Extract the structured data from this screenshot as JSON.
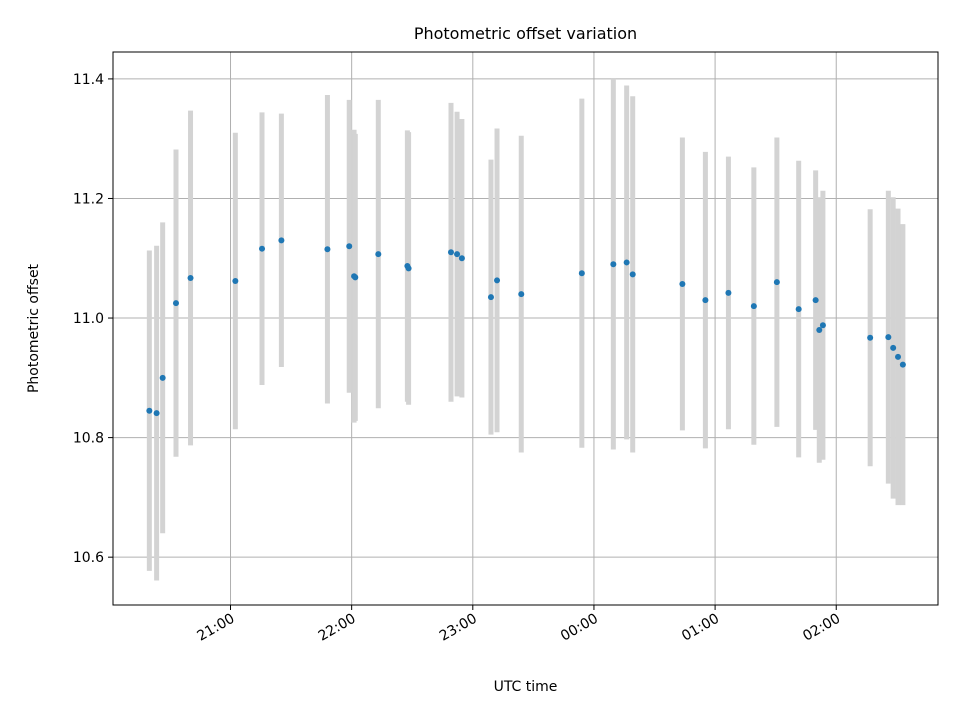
{
  "chart_data": {
    "type": "scatter",
    "title": "Photometric offset variation",
    "xlabel": "UTC time",
    "ylabel": "Photometric offset",
    "x_unit": "hours",
    "xlim": [
      20.03,
      26.84
    ],
    "ylim": [
      10.52,
      11.445
    ],
    "xticks": [
      {
        "value": 21,
        "label": "21:00"
      },
      {
        "value": 22,
        "label": "22:00"
      },
      {
        "value": 23,
        "label": "23:00"
      },
      {
        "value": 24,
        "label": "00:00"
      },
      {
        "value": 25,
        "label": "01:00"
      },
      {
        "value": 26,
        "label": "02:00"
      }
    ],
    "yticks": [
      {
        "value": 10.6,
        "label": "10.6"
      },
      {
        "value": 10.8,
        "label": "10.8"
      },
      {
        "value": 11.0,
        "label": "11.0"
      },
      {
        "value": 11.2,
        "label": "11.2"
      },
      {
        "value": 11.4,
        "label": "11.4"
      }
    ],
    "grid": true,
    "colors": {
      "marker": "#1f77b4",
      "errorbar": "#d3d3d3",
      "grid": "#b0b0b0"
    },
    "series": [
      {
        "points": [
          {
            "x": 20.33,
            "y": 10.845,
            "err": 0.268
          },
          {
            "x": 20.39,
            "y": 10.841,
            "err": 0.28
          },
          {
            "x": 20.44,
            "y": 10.9,
            "err": 0.26
          },
          {
            "x": 20.55,
            "y": 11.025,
            "err": 0.257
          },
          {
            "x": 20.67,
            "y": 11.067,
            "err": 0.28
          },
          {
            "x": 21.04,
            "y": 11.062,
            "err": 0.248
          },
          {
            "x": 21.26,
            "y": 11.116,
            "err": 0.228
          },
          {
            "x": 21.42,
            "y": 11.13,
            "err": 0.212
          },
          {
            "x": 21.8,
            "y": 11.115,
            "err": 0.258
          },
          {
            "x": 21.98,
            "y": 11.12,
            "err": 0.245
          },
          {
            "x": 22.02,
            "y": 11.07,
            "err": 0.245
          },
          {
            "x": 22.03,
            "y": 11.068,
            "err": 0.24
          },
          {
            "x": 22.22,
            "y": 11.107,
            "err": 0.258
          },
          {
            "x": 22.46,
            "y": 11.087,
            "err": 0.227
          },
          {
            "x": 22.47,
            "y": 11.083,
            "err": 0.228
          },
          {
            "x": 22.82,
            "y": 11.11,
            "err": 0.25
          },
          {
            "x": 22.87,
            "y": 11.107,
            "err": 0.238
          },
          {
            "x": 22.91,
            "y": 11.1,
            "err": 0.233
          },
          {
            "x": 23.15,
            "y": 11.035,
            "err": 0.23
          },
          {
            "x": 23.2,
            "y": 11.063,
            "err": 0.254
          },
          {
            "x": 23.4,
            "y": 11.04,
            "err": 0.265
          },
          {
            "x": 23.9,
            "y": 11.075,
            "err": 0.292
          },
          {
            "x": 24.16,
            "y": 11.09,
            "err": 0.31
          },
          {
            "x": 24.27,
            "y": 11.093,
            "err": 0.296
          },
          {
            "x": 24.32,
            "y": 11.073,
            "err": 0.298
          },
          {
            "x": 24.73,
            "y": 11.057,
            "err": 0.245
          },
          {
            "x": 24.92,
            "y": 11.03,
            "err": 0.248
          },
          {
            "x": 25.11,
            "y": 11.042,
            "err": 0.228
          },
          {
            "x": 25.32,
            "y": 11.02,
            "err": 0.232
          },
          {
            "x": 25.51,
            "y": 11.06,
            "err": 0.242
          },
          {
            "x": 25.69,
            "y": 11.015,
            "err": 0.248
          },
          {
            "x": 25.83,
            "y": 11.03,
            "err": 0.217
          },
          {
            "x": 25.86,
            "y": 10.98,
            "err": 0.222
          },
          {
            "x": 25.89,
            "y": 10.988,
            "err": 0.225
          },
          {
            "x": 26.28,
            "y": 10.967,
            "err": 0.215
          },
          {
            "x": 26.43,
            "y": 10.968,
            "err": 0.245
          },
          {
            "x": 26.47,
            "y": 10.95,
            "err": 0.252
          },
          {
            "x": 26.51,
            "y": 10.935,
            "err": 0.248
          },
          {
            "x": 26.55,
            "y": 10.922,
            "err": 0.235
          }
        ]
      }
    ]
  }
}
